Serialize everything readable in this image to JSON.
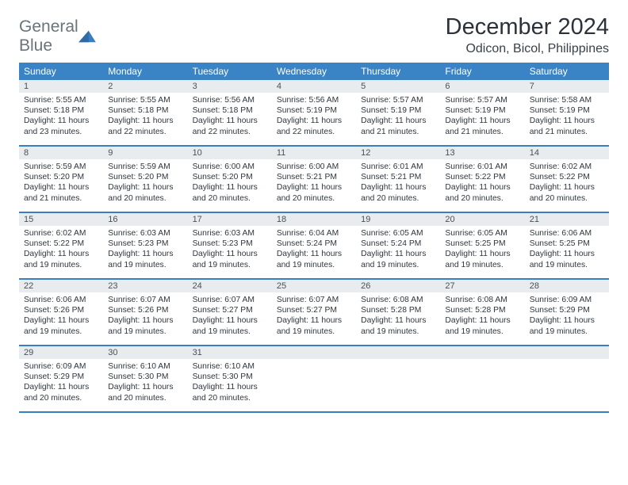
{
  "logo": {
    "word1": "General",
    "word2": "Blue"
  },
  "title": "December 2024",
  "location": "Odicon, Bicol, Philippines",
  "colors": {
    "header_bg": "#3a84c5",
    "header_text": "#ffffff",
    "daynum_bg": "#e9ecef",
    "border": "#3a7ebf",
    "body_text": "#2f363e",
    "logo_gray": "#6a747c",
    "logo_blue": "#3a7ebf"
  },
  "day_names": [
    "Sunday",
    "Monday",
    "Tuesday",
    "Wednesday",
    "Thursday",
    "Friday",
    "Saturday"
  ],
  "cell_labels": {
    "sunrise": "Sunrise:",
    "sunset": "Sunset:",
    "daylight": "Daylight:"
  },
  "days": [
    {
      "n": 1,
      "sr": "5:55 AM",
      "ss": "5:18 PM",
      "dl": "11 hours and 23 minutes."
    },
    {
      "n": 2,
      "sr": "5:55 AM",
      "ss": "5:18 PM",
      "dl": "11 hours and 22 minutes."
    },
    {
      "n": 3,
      "sr": "5:56 AM",
      "ss": "5:18 PM",
      "dl": "11 hours and 22 minutes."
    },
    {
      "n": 4,
      "sr": "5:56 AM",
      "ss": "5:19 PM",
      "dl": "11 hours and 22 minutes."
    },
    {
      "n": 5,
      "sr": "5:57 AM",
      "ss": "5:19 PM",
      "dl": "11 hours and 21 minutes."
    },
    {
      "n": 6,
      "sr": "5:57 AM",
      "ss": "5:19 PM",
      "dl": "11 hours and 21 minutes."
    },
    {
      "n": 7,
      "sr": "5:58 AM",
      "ss": "5:19 PM",
      "dl": "11 hours and 21 minutes."
    },
    {
      "n": 8,
      "sr": "5:59 AM",
      "ss": "5:20 PM",
      "dl": "11 hours and 21 minutes."
    },
    {
      "n": 9,
      "sr": "5:59 AM",
      "ss": "5:20 PM",
      "dl": "11 hours and 20 minutes."
    },
    {
      "n": 10,
      "sr": "6:00 AM",
      "ss": "5:20 PM",
      "dl": "11 hours and 20 minutes."
    },
    {
      "n": 11,
      "sr": "6:00 AM",
      "ss": "5:21 PM",
      "dl": "11 hours and 20 minutes."
    },
    {
      "n": 12,
      "sr": "6:01 AM",
      "ss": "5:21 PM",
      "dl": "11 hours and 20 minutes."
    },
    {
      "n": 13,
      "sr": "6:01 AM",
      "ss": "5:22 PM",
      "dl": "11 hours and 20 minutes."
    },
    {
      "n": 14,
      "sr": "6:02 AM",
      "ss": "5:22 PM",
      "dl": "11 hours and 20 minutes."
    },
    {
      "n": 15,
      "sr": "6:02 AM",
      "ss": "5:22 PM",
      "dl": "11 hours and 19 minutes."
    },
    {
      "n": 16,
      "sr": "6:03 AM",
      "ss": "5:23 PM",
      "dl": "11 hours and 19 minutes."
    },
    {
      "n": 17,
      "sr": "6:03 AM",
      "ss": "5:23 PM",
      "dl": "11 hours and 19 minutes."
    },
    {
      "n": 18,
      "sr": "6:04 AM",
      "ss": "5:24 PM",
      "dl": "11 hours and 19 minutes."
    },
    {
      "n": 19,
      "sr": "6:05 AM",
      "ss": "5:24 PM",
      "dl": "11 hours and 19 minutes."
    },
    {
      "n": 20,
      "sr": "6:05 AM",
      "ss": "5:25 PM",
      "dl": "11 hours and 19 minutes."
    },
    {
      "n": 21,
      "sr": "6:06 AM",
      "ss": "5:25 PM",
      "dl": "11 hours and 19 minutes."
    },
    {
      "n": 22,
      "sr": "6:06 AM",
      "ss": "5:26 PM",
      "dl": "11 hours and 19 minutes."
    },
    {
      "n": 23,
      "sr": "6:07 AM",
      "ss": "5:26 PM",
      "dl": "11 hours and 19 minutes."
    },
    {
      "n": 24,
      "sr": "6:07 AM",
      "ss": "5:27 PM",
      "dl": "11 hours and 19 minutes."
    },
    {
      "n": 25,
      "sr": "6:07 AM",
      "ss": "5:27 PM",
      "dl": "11 hours and 19 minutes."
    },
    {
      "n": 26,
      "sr": "6:08 AM",
      "ss": "5:28 PM",
      "dl": "11 hours and 19 minutes."
    },
    {
      "n": 27,
      "sr": "6:08 AM",
      "ss": "5:28 PM",
      "dl": "11 hours and 19 minutes."
    },
    {
      "n": 28,
      "sr": "6:09 AM",
      "ss": "5:29 PM",
      "dl": "11 hours and 19 minutes."
    },
    {
      "n": 29,
      "sr": "6:09 AM",
      "ss": "5:29 PM",
      "dl": "11 hours and 20 minutes."
    },
    {
      "n": 30,
      "sr": "6:10 AM",
      "ss": "5:30 PM",
      "dl": "11 hours and 20 minutes."
    },
    {
      "n": 31,
      "sr": "6:10 AM",
      "ss": "5:30 PM",
      "dl": "11 hours and 20 minutes."
    }
  ]
}
